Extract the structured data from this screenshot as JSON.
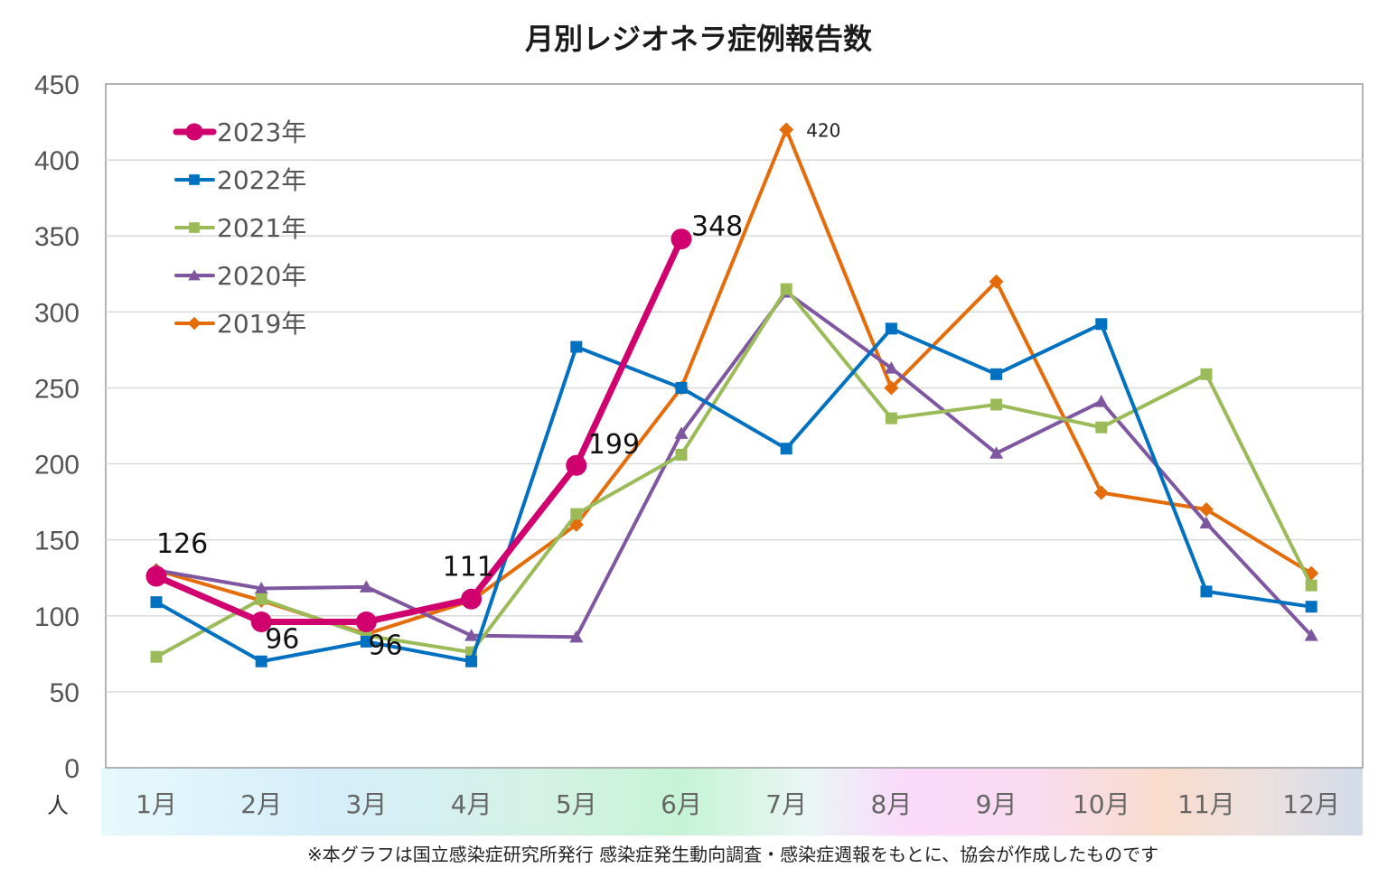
{
  "chart_data": {
    "type": "line",
    "title": "月別レジオネラ症例報告数",
    "ylabel": "人",
    "ylim": [
      0,
      450
    ],
    "yticks": [
      0,
      50,
      100,
      150,
      200,
      250,
      300,
      350,
      400,
      450
    ],
    "categories": [
      "1月",
      "2月",
      "3月",
      "4月",
      "5月",
      "6月",
      "7月",
      "8月",
      "9月",
      "10月",
      "11月",
      "12月"
    ],
    "grid": true,
    "legend_position": "top-left",
    "series": [
      {
        "name": "2019年",
        "color": "#E46C0A",
        "marker": "diamond",
        "values": [
          130,
          110,
          88,
          110,
          160,
          250,
          420,
          250,
          320,
          181,
          170,
          128
        ]
      },
      {
        "name": "2020年",
        "color": "#7E57A0",
        "marker": "triangle",
        "values": [
          130,
          118,
          119,
          87,
          86,
          220,
          313,
          263,
          207,
          241,
          161,
          87
        ]
      },
      {
        "name": "2021年",
        "color": "#9BBB59",
        "marker": "square",
        "values": [
          73,
          111,
          87,
          76,
          167,
          206,
          315,
          230,
          239,
          224,
          259,
          120
        ]
      },
      {
        "name": "2022年",
        "color": "#0070C0",
        "marker": "square",
        "values": [
          109,
          70,
          83,
          70,
          277,
          250,
          210,
          289,
          259,
          292,
          116,
          106
        ]
      },
      {
        "name": "2023年",
        "color": "#D0006F",
        "marker": "circle",
        "values": [
          126,
          96,
          96,
          111,
          199,
          348,
          null,
          null,
          null,
          null,
          null,
          null
        ]
      }
    ],
    "data_labels": [
      {
        "series": "2023年",
        "index": 0,
        "text": "126"
      },
      {
        "series": "2023年",
        "index": 1,
        "text": "96"
      },
      {
        "series": "2023年",
        "index": 2,
        "text": "96"
      },
      {
        "series": "2023年",
        "index": 3,
        "text": "111"
      },
      {
        "series": "2023年",
        "index": 4,
        "text": "199"
      },
      {
        "series": "2023年",
        "index": 5,
        "text": "348"
      },
      {
        "series": "2019年",
        "index": 6,
        "text": "420"
      }
    ]
  },
  "legend_order": [
    "2023年",
    "2022年",
    "2021年",
    "2020年",
    "2019年"
  ],
  "source_note": "※本グラフは国立感染症研究所発行 感染症発生動向調査・感染症週報をもとに、協会が作成したものです"
}
